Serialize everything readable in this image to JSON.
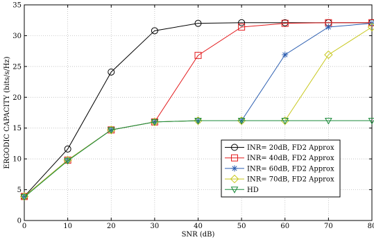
{
  "chart_data": {
    "type": "line",
    "xlabel": "SNR (dB)",
    "ylabel": "ERGODIC CAPACITY (bits/s/Hz)",
    "xlim": [
      0,
      80
    ],
    "ylim": [
      0,
      35
    ],
    "x_ticks": [
      0,
      10,
      20,
      30,
      40,
      50,
      60,
      70,
      80
    ],
    "y_ticks": [
      0,
      5,
      10,
      15,
      20,
      25,
      30,
      35
    ],
    "grid": true,
    "legend_position": "bottom-right",
    "x": [
      0,
      10,
      20,
      30,
      40,
      50,
      60,
      70,
      80
    ],
    "series": [
      {
        "name": "INR= 20dB, FD2 Approx",
        "color": "#000000",
        "marker": "circle",
        "values": [
          3.9,
          11.6,
          24.1,
          30.8,
          32.0,
          32.1,
          32.1,
          32.1,
          32.1
        ]
      },
      {
        "name": "INR= 40dB, FD2 Approx",
        "color": "#e31a1c",
        "marker": "square",
        "values": [
          3.9,
          9.8,
          14.7,
          16.0,
          26.8,
          31.4,
          32.0,
          32.1,
          32.1
        ]
      },
      {
        "name": "INR= 60dB, FD2 Approx",
        "color": "#2a5db0",
        "marker": "star",
        "values": [
          3.9,
          9.8,
          14.7,
          16.0,
          16.2,
          16.2,
          26.9,
          31.4,
          32.0
        ]
      },
      {
        "name": "INR= 70dB, FD2 Approx",
        "color": "#c8c81e",
        "marker": "diamond",
        "values": [
          3.9,
          9.8,
          14.7,
          16.0,
          16.2,
          16.2,
          16.2,
          26.9,
          31.4
        ]
      },
      {
        "name": "HD",
        "color": "#1a8a3a",
        "marker": "triangle-down",
        "values": [
          3.8,
          9.7,
          14.7,
          16.0,
          16.2,
          16.2,
          16.2,
          16.2,
          16.2
        ]
      }
    ]
  }
}
